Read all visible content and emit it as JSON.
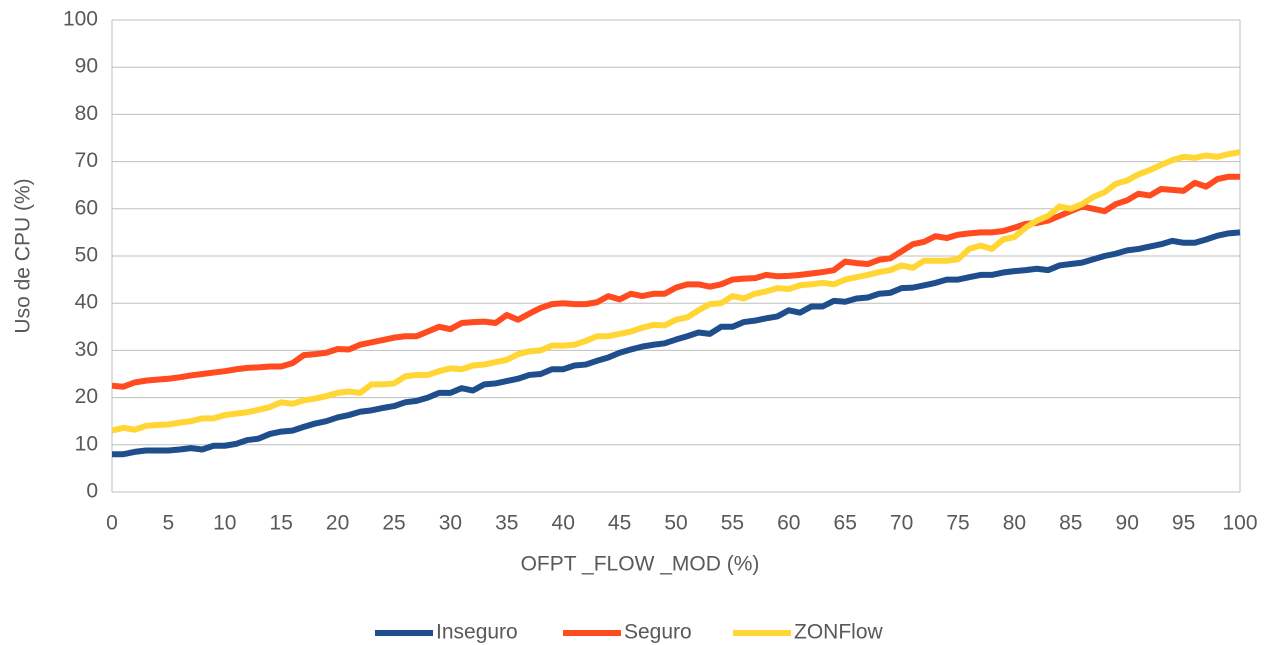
{
  "chart_data": {
    "type": "line",
    "xlabel": "OFPT _FLOW _MOD (%)",
    "ylabel": "Uso de CPU (%)",
    "x": [
      0,
      1,
      2,
      3,
      4,
      5,
      6,
      7,
      8,
      9,
      10,
      11,
      12,
      13,
      14,
      15,
      16,
      17,
      18,
      19,
      20,
      21,
      22,
      23,
      24,
      25,
      26,
      27,
      28,
      29,
      30,
      31,
      32,
      33,
      34,
      35,
      36,
      37,
      38,
      39,
      40,
      41,
      42,
      43,
      44,
      45,
      46,
      47,
      48,
      49,
      50,
      51,
      52,
      53,
      54,
      55,
      56,
      57,
      58,
      59,
      60,
      61,
      62,
      63,
      64,
      65,
      66,
      67,
      68,
      69,
      70,
      71,
      72,
      73,
      74,
      75,
      76,
      77,
      78,
      79,
      80,
      81,
      82,
      83,
      84,
      85,
      86,
      87,
      88,
      89,
      90,
      91,
      92,
      93,
      94,
      95,
      96,
      97,
      98,
      99,
      100
    ],
    "series": [
      {
        "name": "Inseguro",
        "color": "#1f4e8c",
        "values": [
          8,
          8,
          8.5,
          8.8,
          8.8,
          8.8,
          9,
          9.3,
          9,
          9.8,
          9.8,
          10.2,
          11,
          11.3,
          12.3,
          12.8,
          13,
          13.8,
          14.5,
          15,
          15.8,
          16.3,
          17,
          17.3,
          17.8,
          18.2,
          19,
          19.3,
          20,
          21,
          21,
          22,
          21.5,
          22.8,
          23,
          23.5,
          24,
          24.8,
          25,
          26,
          26,
          26.8,
          27,
          27.8,
          28.5,
          29.5,
          30.2,
          30.8,
          31.2,
          31.5,
          32.3,
          33,
          33.8,
          33.5,
          35,
          35,
          36,
          36.3,
          36.8,
          37.2,
          38.5,
          38,
          39.3,
          39.3,
          40.5,
          40.3,
          41,
          41.2,
          42,
          42.2,
          43.2,
          43.3,
          43.8,
          44.3,
          45,
          45,
          45.5,
          46,
          46,
          46.5,
          46.8,
          47,
          47.3,
          47,
          48,
          48.3,
          48.6,
          49.3,
          50,
          50.5,
          51.2,
          51.5,
          52,
          52.5,
          53.2,
          52.8,
          52.8,
          53.5,
          54.3,
          54.8,
          55
        ]
      },
      {
        "name": "Seguro",
        "color": "#ff4b1f",
        "values": [
          22.5,
          22.3,
          23.2,
          23.6,
          23.8,
          24,
          24.3,
          24.7,
          25,
          25.3,
          25.6,
          26,
          26.3,
          26.4,
          26.6,
          26.6,
          27.3,
          29,
          29.2,
          29.5,
          30.3,
          30.2,
          31.2,
          31.7,
          32.2,
          32.7,
          33,
          33,
          34,
          35,
          34.5,
          35.8,
          36,
          36.1,
          35.8,
          37.5,
          36.5,
          37.8,
          39,
          39.8,
          40,
          39.8,
          39.8,
          40.2,
          41.5,
          40.8,
          42,
          41.5,
          42,
          42,
          43.3,
          44,
          44,
          43.5,
          44,
          45,
          45.2,
          45.3,
          46,
          45.7,
          45.8,
          46,
          46.3,
          46.6,
          47,
          48.8,
          48.5,
          48.3,
          49.2,
          49.5,
          51,
          52.5,
          53,
          54.2,
          53.8,
          54.5,
          54.8,
          55,
          55,
          55.3,
          56,
          56.8,
          57,
          57.5,
          58.5,
          59.5,
          60.5,
          60,
          59.5,
          61,
          61.8,
          63.2,
          62.8,
          64.2,
          64,
          63.8,
          65.5,
          64.7,
          66.3,
          66.8,
          66.8
        ]
      },
      {
        "name": "ZONFlow",
        "color": "#ffd633",
        "values": [
          13,
          13.6,
          13.2,
          14,
          14.2,
          14.3,
          14.7,
          15,
          15.6,
          15.6,
          16.3,
          16.6,
          16.9,
          17.4,
          18,
          19,
          18.7,
          19.4,
          19.8,
          20.3,
          21,
          21.3,
          21,
          22.8,
          22.8,
          23,
          24.5,
          24.8,
          24.8,
          25.6,
          26.2,
          26,
          26.8,
          27,
          27.5,
          28,
          29.2,
          29.8,
          30,
          31,
          31,
          31.2,
          32,
          33,
          33,
          33.5,
          34,
          34.8,
          35.4,
          35.3,
          36.5,
          37,
          38.5,
          39.8,
          40,
          41.5,
          41,
          42,
          42.5,
          43.2,
          43,
          43.8,
          44,
          44.3,
          44,
          45,
          45.5,
          46,
          46.6,
          47,
          48,
          47.5,
          49,
          49,
          49,
          49.3,
          51.5,
          52.2,
          51.5,
          53.5,
          54,
          56,
          57.5,
          58.5,
          60.5,
          60,
          61,
          62.5,
          63.5,
          65.3,
          66,
          67.3,
          68.2,
          69.3,
          70.3,
          71,
          70.8,
          71.3,
          71,
          71.6,
          72
        ]
      }
    ],
    "xlim": [
      0,
      100
    ],
    "xticks": [
      0,
      5,
      10,
      15,
      20,
      25,
      30,
      35,
      40,
      45,
      50,
      55,
      60,
      65,
      70,
      75,
      80,
      85,
      90,
      95,
      100
    ],
    "ylim": [
      0,
      100
    ],
    "yticks": [
      0,
      10,
      20,
      30,
      40,
      50,
      60,
      70,
      80,
      90,
      100
    ],
    "grid": true,
    "legend": "bottom"
  }
}
